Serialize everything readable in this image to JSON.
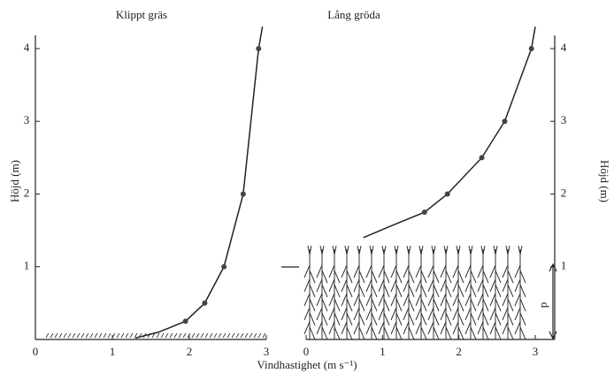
{
  "chart_data": [
    {
      "type": "line",
      "title": "Klippt gräs",
      "ylabel": "Höjd (m)",
      "xlabel": "Vindhastighet (m s⁻¹)",
      "xlim": [
        0,
        3
      ],
      "ylim": [
        0,
        4.2
      ],
      "xticks": [
        0,
        1,
        2,
        3
      ],
      "yticks": [
        1,
        2,
        3,
        4
      ],
      "yaxis": "left",
      "series": [
        {
          "kind": "line",
          "color": "#222",
          "x": [
            1.3,
            1.6,
            1.95,
            2.2,
            2.45,
            2.7,
            2.9,
            2.95
          ],
          "values": [
            0.02,
            0.1,
            0.25,
            0.5,
            1.0,
            2.0,
            4.0,
            4.3
          ]
        },
        {
          "kind": "points",
          "color": "#444",
          "x": [
            1.95,
            2.2,
            2.45,
            2.7,
            2.9
          ],
          "values": [
            0.25,
            0.5,
            1.0,
            2.0,
            4.0
          ]
        }
      ]
    },
    {
      "type": "line",
      "title": "Lång gröda",
      "ylabel": "Höjd (m)",
      "annotation": "d",
      "xlim": [
        0,
        3
      ],
      "ylim": [
        0,
        4.2
      ],
      "xticks": [
        0,
        1,
        2,
        3
      ],
      "yticks": [
        1,
        2,
        3,
        4
      ],
      "yaxis": "right",
      "series": [
        {
          "kind": "line",
          "color": "#222",
          "x": [
            0.75,
            1.2,
            1.55,
            1.85,
            2.3,
            2.6,
            2.95,
            3.0
          ],
          "values": [
            1.4,
            1.6,
            1.75,
            2.0,
            2.5,
            3.0,
            4.0,
            4.3
          ]
        },
        {
          "kind": "points",
          "color": "#444",
          "x": [
            1.55,
            1.85,
            2.3,
            2.6,
            2.95
          ],
          "values": [
            1.75,
            2.0,
            2.5,
            3.0,
            4.0
          ]
        }
      ]
    }
  ]
}
